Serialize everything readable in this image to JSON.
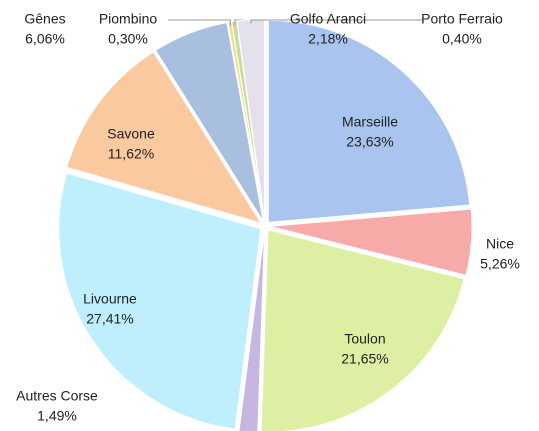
{
  "chart_data": {
    "type": "pie",
    "categories": [
      "Marseille",
      "Nice",
      "Toulon",
      "Autres Corse",
      "Livourne",
      "Savone",
      "Gênes",
      "Piombino",
      "Porto Ferraio",
      "Golfo Aranci"
    ],
    "values": [
      23.63,
      5.26,
      21.65,
      1.49,
      27.41,
      11.62,
      6.06,
      0.3,
      0.4,
      2.18
    ],
    "value_labels": [
      "23,63%",
      "5,26%",
      "21,65%",
      "1,49%",
      "27,41%",
      "11,62%",
      "6,06%",
      "0,30%",
      "0,40%",
      "2,18%"
    ],
    "colors": [
      "#a9c4ee",
      "#f8aaa9",
      "#dcefa2",
      "#c8b6e2",
      "#bfeefc",
      "#fbc9a0",
      "#a8bfe0",
      "#f3e08c",
      "#c9dba2",
      "#e4e0ec"
    ]
  }
}
